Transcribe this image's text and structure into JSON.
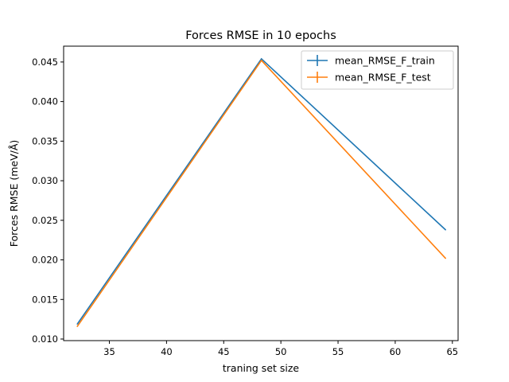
{
  "chart_data": {
    "type": "line",
    "title": "Forces RMSE in 10 epochs",
    "xlabel": "traning set size",
    "ylabel": "Forces RMSE (meV/Å)",
    "xlim": [
      31,
      65.5
    ],
    "ylim": [
      0.0098,
      0.047
    ],
    "xticks": [
      35,
      40,
      45,
      50,
      55,
      60,
      65
    ],
    "yticks": [
      0.01,
      0.015,
      0.02,
      0.025,
      0.03,
      0.035,
      0.04,
      0.045
    ],
    "ytick_labels": [
      "0.010",
      "0.015",
      "0.020",
      "0.025",
      "0.030",
      "0.035",
      "0.040",
      "0.045"
    ],
    "legend_position": "top-right",
    "series": [
      {
        "name": "mean_RMSE_F_train",
        "color": "#1f77b4",
        "x": [
          32.2,
          48.3,
          64.4
        ],
        "y": [
          0.0119,
          0.0454,
          0.0238
        ]
      },
      {
        "name": "mean_RMSE_F_test",
        "color": "#ff7f0e",
        "x": [
          32.2,
          48.3,
          64.4
        ],
        "y": [
          0.0116,
          0.0452,
          0.0202
        ]
      }
    ]
  }
}
